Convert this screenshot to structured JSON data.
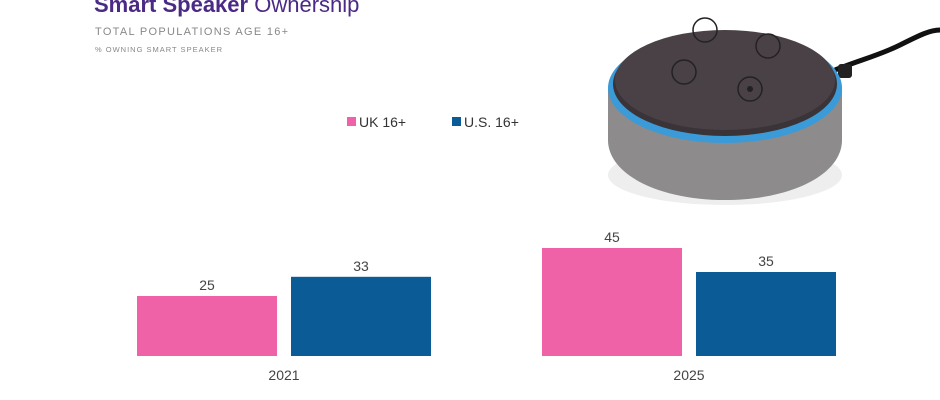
{
  "chart_data": {
    "type": "bar",
    "title": [
      "Smart Speaker",
      "Ownership"
    ],
    "subtitle": "TOTAL POPULATIONS AGE 16+",
    "note": "% OWNING SMART SPEAKER",
    "categories": [
      "2021",
      "2025"
    ],
    "series": [
      {
        "name": "UK 16+",
        "color": "#f062a8",
        "values": [
          25,
          45
        ]
      },
      {
        "name": "U.S. 16+",
        "color": "#0b5c96",
        "values": [
          33,
          35
        ]
      }
    ]
  }
}
